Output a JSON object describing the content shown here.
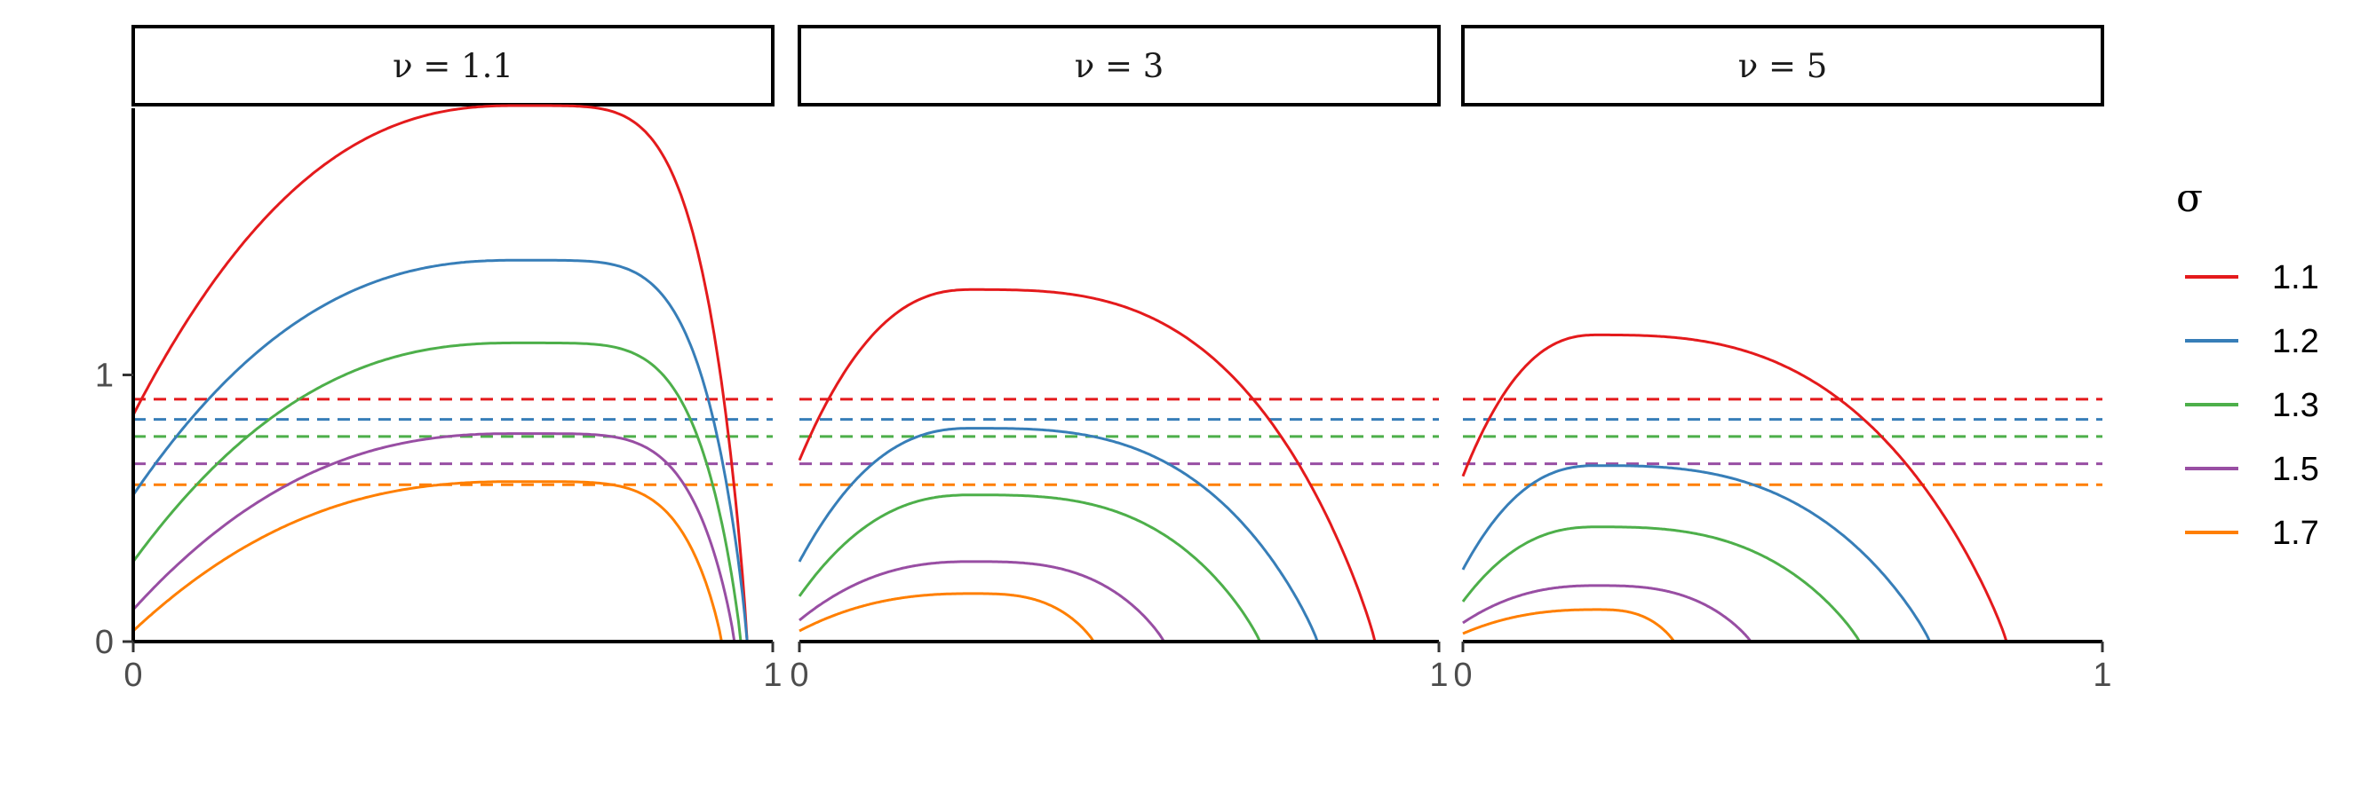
{
  "chart_data": {
    "type": "line",
    "facets": [
      {
        "label": "ν = 1.1",
        "nu": 1.1,
        "x_end": 0.949,
        "peak_x": 0.6,
        "flatness": 3.0
      },
      {
        "label": "ν = 3",
        "nu": 3,
        "x_end": 0.9,
        "peak_x": 0.27,
        "flatness": 1.0
      },
      {
        "label": "ν = 5",
        "nu": 5,
        "x_end": 0.85,
        "peak_x": 0.21,
        "flatness": 0.8
      }
    ],
    "x_tick_labels": [
      "0",
      "1",
      "0",
      "1",
      "0",
      "1"
    ],
    "y_ticks": [
      0,
      1
    ],
    "ylim": [
      0,
      2.0
    ],
    "xlim": [
      0,
      1
    ],
    "legend": {
      "title": "σ",
      "position": "right"
    },
    "series": [
      {
        "name": "1.1",
        "sigma": 1.1,
        "color": "#E41A1C",
        "hline": 0.909,
        "start": [
          0.85,
          0.68,
          0.62
        ],
        "peak": [
          2.01,
          1.32,
          1.15
        ],
        "end": [
          0.96,
          0.9,
          0.85
        ]
      },
      {
        "name": "1.2",
        "sigma": 1.2,
        "color": "#377EB8",
        "hline": 0.833,
        "start": [
          0.55,
          0.3,
          0.27
        ],
        "peak": [
          1.43,
          0.8,
          0.66
        ],
        "end": [
          0.96,
          0.81,
          0.73
        ]
      },
      {
        "name": "1.3",
        "sigma": 1.3,
        "color": "#4DAF4A",
        "hline": 0.769,
        "start": [
          0.3,
          0.17,
          0.15
        ],
        "peak": [
          1.12,
          0.55,
          0.43
        ],
        "end": [
          0.95,
          0.72,
          0.62
        ]
      },
      {
        "name": "1.5",
        "sigma": 1.5,
        "color": "#984EA3",
        "hline": 0.667,
        "start": [
          0.12,
          0.08,
          0.07
        ],
        "peak": [
          0.78,
          0.3,
          0.21
        ],
        "end": [
          0.94,
          0.57,
          0.45
        ]
      },
      {
        "name": "1.7",
        "sigma": 1.7,
        "color": "#FF7F00",
        "hline": 0.588,
        "start": [
          0.04,
          0.04,
          0.03
        ],
        "peak": [
          0.6,
          0.18,
          0.12
        ],
        "end": [
          0.92,
          0.46,
          0.33
        ]
      }
    ]
  }
}
